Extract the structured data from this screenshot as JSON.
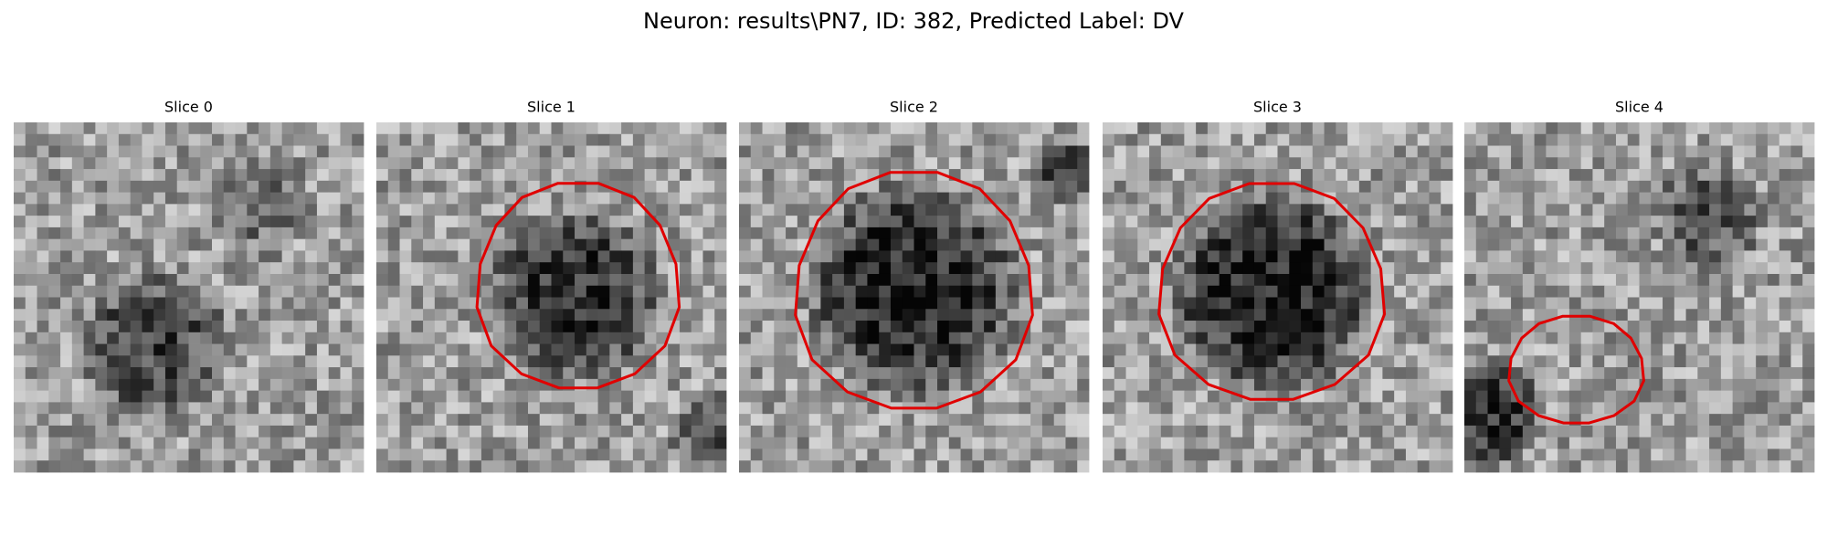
{
  "title": "Neuron: results\\PN7, ID: 382, Predicted Label: DV",
  "panels": [
    {
      "title": "Slice 0"
    },
    {
      "title": "Slice 1"
    },
    {
      "title": "Slice 2"
    },
    {
      "title": "Slice 3"
    },
    {
      "title": "Slice 4"
    }
  ]
}
